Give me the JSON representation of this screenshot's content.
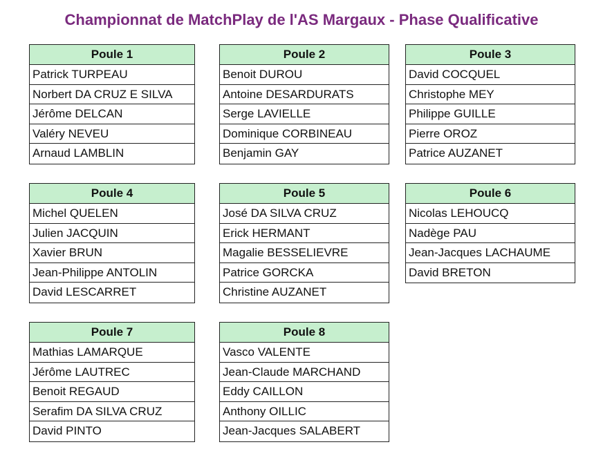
{
  "title": "Championnat de MatchPlay de l'AS Margaux - Phase Qualificative",
  "colors": {
    "title": "#7a2a7e",
    "header_fill": "#c6efce"
  },
  "poules": [
    {
      "name": "Poule 1",
      "players": [
        "Patrick TURPEAU",
        "Norbert DA CRUZ E SILVA",
        "Jérôme DELCAN",
        "Valéry NEVEU",
        "Arnaud LAMBLIN"
      ]
    },
    {
      "name": "Poule 2",
      "players": [
        "Benoit DUROU",
        "Antoine DESARDURATS",
        "Serge LAVIELLE",
        "Dominique CORBINEAU",
        "Benjamin GAY"
      ]
    },
    {
      "name": "Poule 3",
      "players": [
        "David COCQUEL",
        "Christophe MEY",
        "Philippe GUILLE",
        "Pierre OROZ",
        "Patrice AUZANET"
      ]
    },
    {
      "name": "Poule 4",
      "players": [
        "Michel QUELEN",
        "Julien JACQUIN",
        "Xavier BRUN",
        "Jean-Philippe ANTOLIN",
        "David LESCARRET"
      ]
    },
    {
      "name": "Poule 5",
      "players": [
        "José DA SILVA CRUZ",
        "Erick HERMANT",
        "Magalie BESSELIEVRE",
        "Patrice GORCKA",
        "Christine AUZANET"
      ]
    },
    {
      "name": "Poule 6",
      "players": [
        "Nicolas LEHOUCQ",
        "Nadège PAU",
        "Jean-Jacques LACHAUME",
        "David BRETON"
      ]
    },
    {
      "name": "Poule 7",
      "players": [
        "Mathias LAMARQUE",
        "Jérôme LAUTREC",
        "Benoit REGAUD",
        "Serafim DA SILVA CRUZ",
        "David PINTO"
      ]
    },
    {
      "name": "Poule 8",
      "players": [
        "Vasco VALENTE",
        "Jean-Claude MARCHAND",
        "Eddy CAILLON",
        "Anthony OILLIC",
        "Jean-Jacques SALABERT"
      ]
    }
  ]
}
